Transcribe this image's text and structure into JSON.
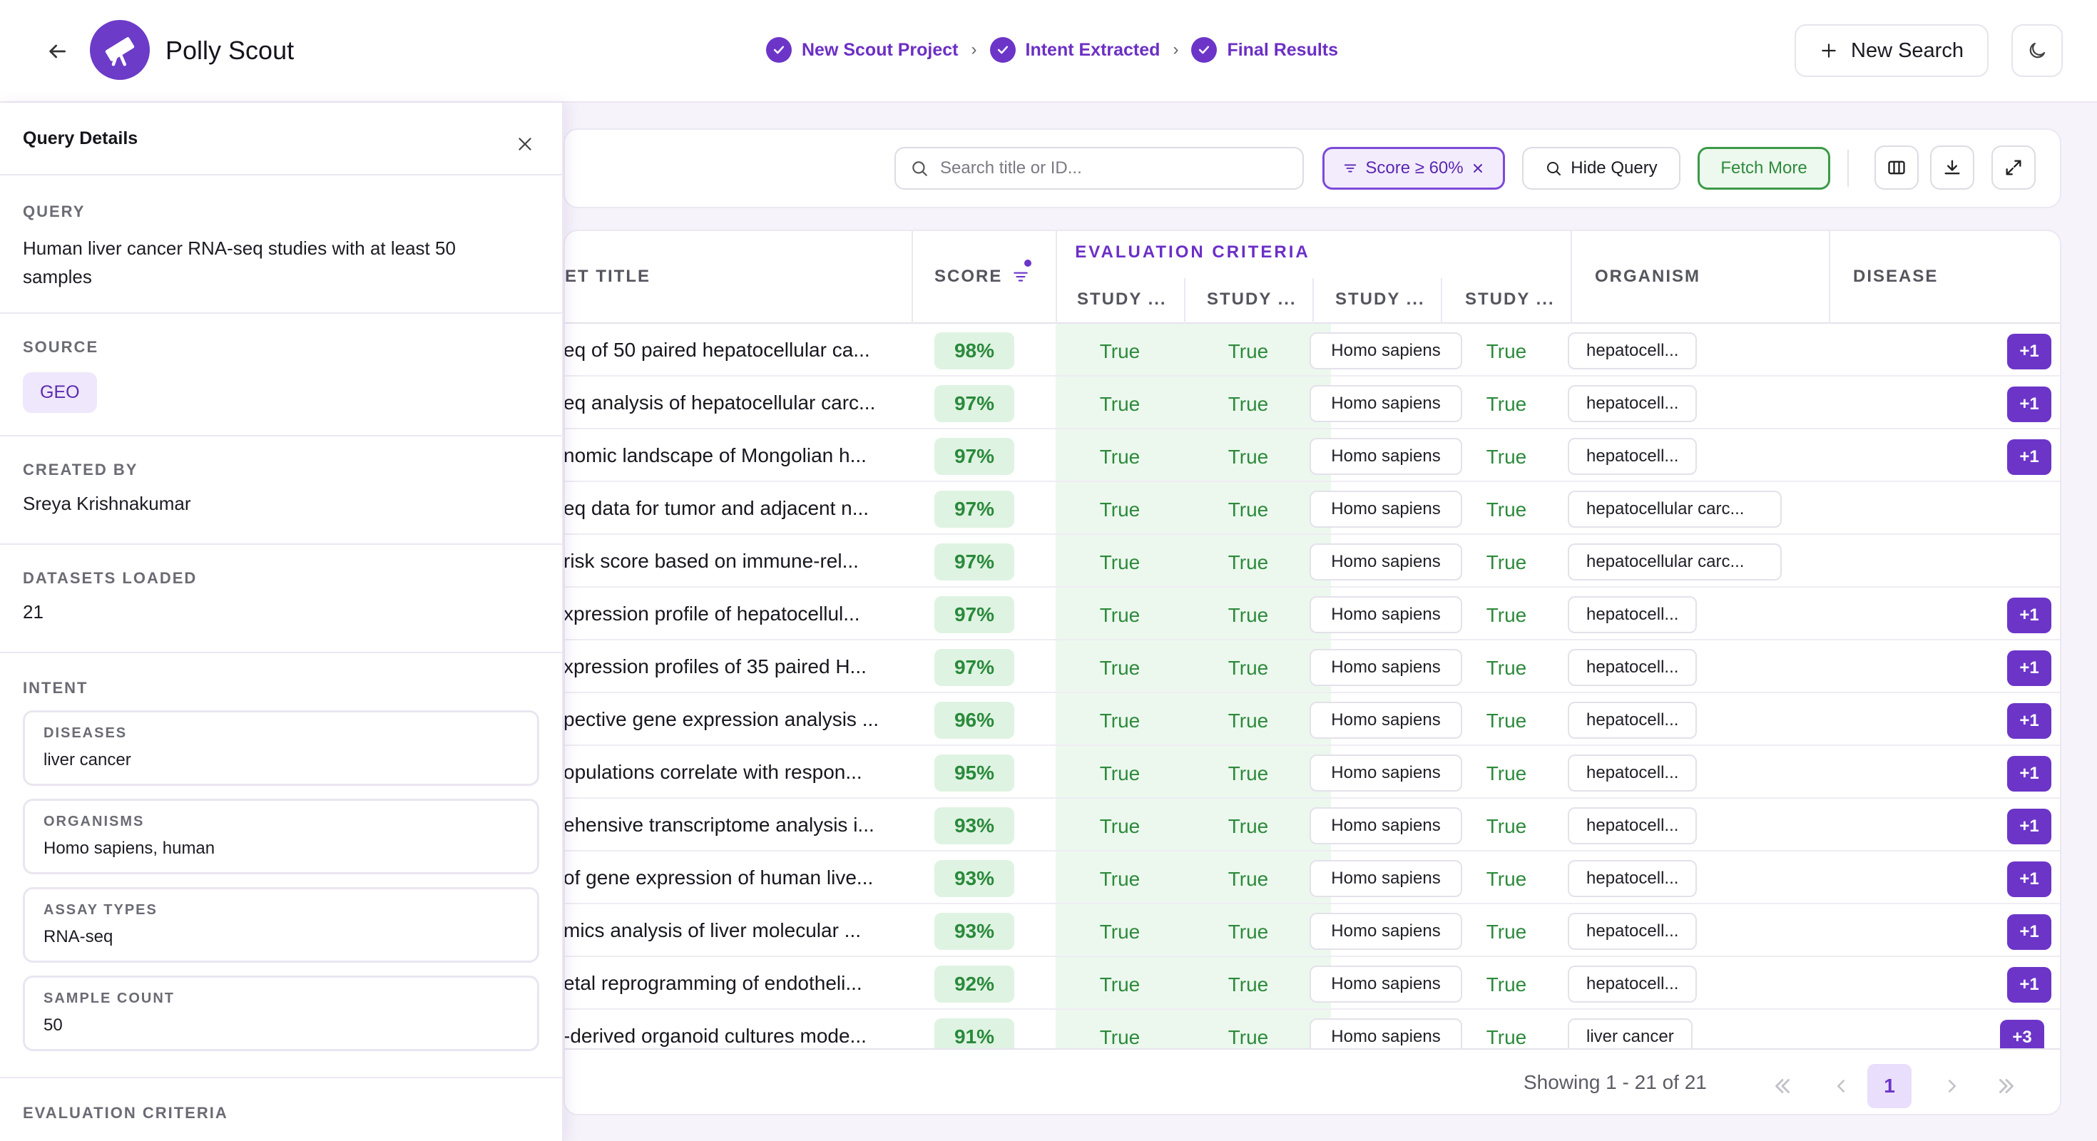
{
  "header": {
    "app_title": "Polly Scout",
    "steps": [
      "New Scout Project",
      "Intent Extracted",
      "Final Results"
    ],
    "new_search_label": "New Search"
  },
  "side_panel": {
    "title": "Query Details",
    "query_label": "QUERY",
    "query_value": "Human liver cancer RNA-seq studies with at least 50 samples",
    "source_label": "SOURCE",
    "source_value": "GEO",
    "created_by_label": "CREATED BY",
    "created_by_value": "Sreya Krishnakumar",
    "datasets_label": "DATASETS LOADED",
    "datasets_value": "21",
    "intent_label": "INTENT",
    "intent": [
      {
        "label": "DISEASES",
        "value": "liver cancer"
      },
      {
        "label": "ORGANISMS",
        "value": "Homo sapiens, human"
      },
      {
        "label": "ASSAY TYPES",
        "value": "RNA-seq"
      },
      {
        "label": "SAMPLE COUNT",
        "value": "50"
      }
    ],
    "eval_criteria_label": "EVALUATION CRITERIA"
  },
  "toolbar": {
    "search_placeholder": "Search title or ID...",
    "score_filter": "Score ≥ 60%",
    "hide_query": "Hide Query",
    "fetch_more": "Fetch More"
  },
  "table": {
    "headers": {
      "title": "ET TITLE",
      "score": "SCORE",
      "evaluation": "EVALUATION CRITERIA",
      "study_cols": [
        "STUDY ...",
        "STUDY ...",
        "STUDY ...",
        "STUDY ..."
      ],
      "organism": "ORGANISM",
      "disease": "DISEASE"
    },
    "rows": [
      {
        "title": "eq of 50 paired hepatocellular ca...",
        "score": "98%",
        "criteria": [
          "True",
          "True",
          "True",
          "True"
        ],
        "organism": "Homo sapiens",
        "disease": "hepatocell...",
        "extra": "+1"
      },
      {
        "title": "eq analysis of hepatocellular carc...",
        "score": "97%",
        "criteria": [
          "True",
          "True",
          "True",
          "True"
        ],
        "organism": "Homo sapiens",
        "disease": "hepatocell...",
        "extra": "+1"
      },
      {
        "title": "nomic landscape of Mongolian h...",
        "score": "97%",
        "criteria": [
          "True",
          "True",
          "True",
          "True"
        ],
        "organism": "Homo sapiens",
        "disease": "hepatocell...",
        "extra": "+1"
      },
      {
        "title": "eq data for tumor and adjacent n...",
        "score": "97%",
        "criteria": [
          "True",
          "True",
          "True",
          "True"
        ],
        "organism": "Homo sapiens",
        "disease": "hepatocellular carc...",
        "extra": ""
      },
      {
        "title": " risk score based on immune-rel...",
        "score": "97%",
        "criteria": [
          "True",
          "True",
          "True",
          "True"
        ],
        "organism": "Homo sapiens",
        "disease": "hepatocellular carc...",
        "extra": ""
      },
      {
        "title": "xpression profile of hepatocellul...",
        "score": "97%",
        "criteria": [
          "True",
          "True",
          "True",
          "True"
        ],
        "organism": "Homo sapiens",
        "disease": "hepatocell...",
        "extra": "+1"
      },
      {
        "title": "xpression profiles of 35 paired H...",
        "score": "97%",
        "criteria": [
          "True",
          "True",
          "True",
          "True"
        ],
        "organism": "Homo sapiens",
        "disease": "hepatocell...",
        "extra": "+1"
      },
      {
        "title": "pective gene expression analysis ...",
        "score": "96%",
        "criteria": [
          "True",
          "True",
          "True",
          "True"
        ],
        "organism": "Homo sapiens",
        "disease": "hepatocell...",
        "extra": "+1"
      },
      {
        "title": "opulations correlate with respon...",
        "score": "95%",
        "criteria": [
          "True",
          "True",
          "True",
          "True"
        ],
        "organism": "Homo sapiens",
        "disease": "hepatocell...",
        "extra": "+1"
      },
      {
        "title": "ehensive transcriptome analysis i...",
        "score": "93%",
        "criteria": [
          "True",
          "True",
          "True",
          "True"
        ],
        "organism": "Homo sapiens",
        "disease": "hepatocell...",
        "extra": "+1"
      },
      {
        "title": "of gene expression of human live...",
        "score": "93%",
        "criteria": [
          "True",
          "True",
          "True",
          "True"
        ],
        "organism": "Homo sapiens",
        "disease": "hepatocell...",
        "extra": "+1"
      },
      {
        "title": "mics analysis of liver molecular ...",
        "score": "93%",
        "criteria": [
          "True",
          "True",
          "True",
          "True"
        ],
        "organism": "Homo sapiens",
        "disease": "hepatocell...",
        "extra": "+1"
      },
      {
        "title": "etal reprogramming of endotheli...",
        "score": "92%",
        "criteria": [
          "True",
          "True",
          "True",
          "True"
        ],
        "organism": "Homo sapiens",
        "disease": "hepatocell...",
        "extra": "+1"
      },
      {
        "title": "-derived organoid cultures mode...",
        "score": "91%",
        "criteria": [
          "True",
          "True",
          "True",
          "True"
        ],
        "organism": "Homo sapiens",
        "disease": "liver cancer",
        "extra": "+3"
      }
    ]
  },
  "pagination": {
    "showing": "Showing 1 - 21 of 21",
    "current_page": "1"
  },
  "colors": {
    "accent": "#6c35c8",
    "score_green": "#2a8a3b",
    "criteria_bg": "#ecf8ee"
  }
}
